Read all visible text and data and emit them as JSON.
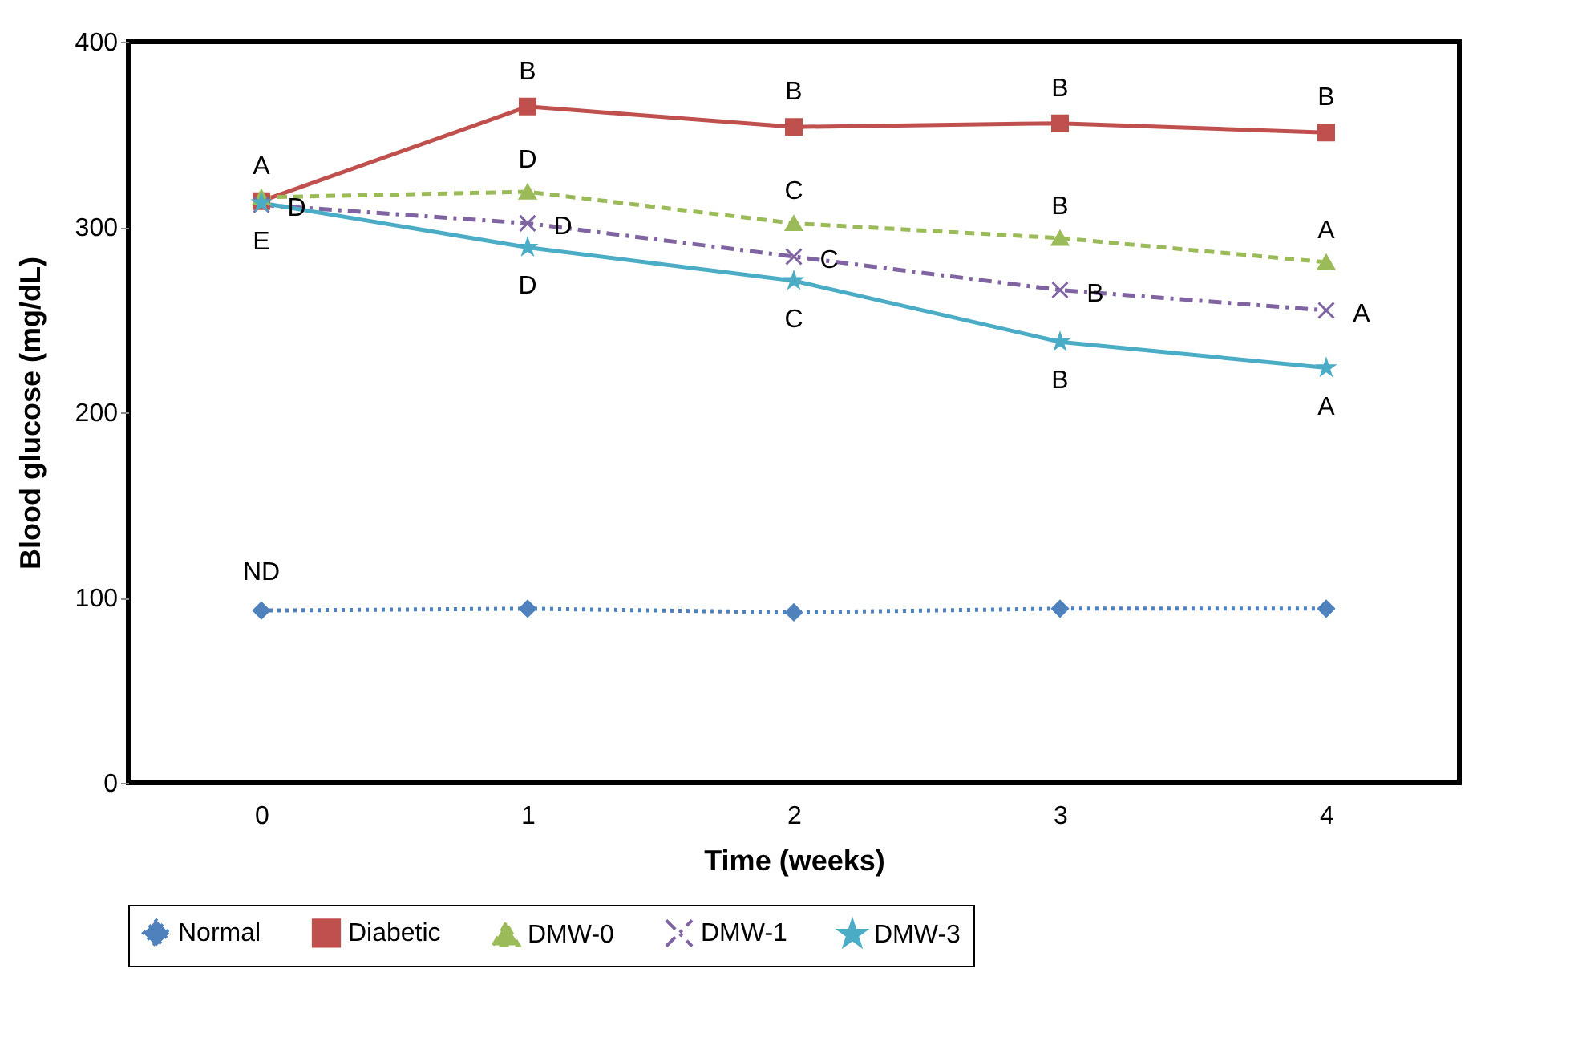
{
  "chart_data": {
    "type": "line",
    "xlabel": "Time (weeks)",
    "ylabel": "Blood glucose (mg/dL)",
    "x": [
      0,
      1,
      2,
      3,
      4
    ],
    "xlim": [
      -0.5,
      4.5
    ],
    "xticks": [
      0,
      1,
      2,
      3,
      4
    ],
    "ylim": [
      0,
      400
    ],
    "yticks": [
      0,
      100,
      200,
      300,
      400
    ],
    "grid": false,
    "legend": "bottom",
    "series": [
      {
        "name": "Normal",
        "color": "#4f81bd",
        "marker": "diamond",
        "line_style": "dotted",
        "values": [
          93,
          94,
          92,
          94,
          94
        ]
      },
      {
        "name": "Diabetic",
        "color": "#c0504d",
        "marker": "square",
        "line_style": "solid",
        "values": [
          314,
          365,
          354,
          356,
          351
        ]
      },
      {
        "name": "DMW-0",
        "color": "#9bbb59",
        "marker": "triangle",
        "line_style": "dashed",
        "values": [
          316,
          319,
          302,
          294,
          281
        ]
      },
      {
        "name": "DMW-1",
        "color": "#8064a2",
        "marker": "cross",
        "line_style": "dashdot",
        "values": [
          312,
          302,
          284,
          266,
          255
        ]
      },
      {
        "name": "DMW-3",
        "color": "#4bacc6",
        "marker": "star",
        "line_style": "solid",
        "values": [
          313,
          289,
          271,
          238,
          224
        ]
      }
    ],
    "annotations": [
      {
        "text": "ND",
        "x": 0,
        "y": 93
      },
      {
        "text": "A",
        "x": 0,
        "y": 314
      },
      {
        "text": "D",
        "x": 0,
        "y": 312
      },
      {
        "text": "E",
        "x": 0,
        "y": 313
      },
      {
        "text": "B",
        "x": 1,
        "y": 365
      },
      {
        "text": "D",
        "x": 1,
        "y": 319
      },
      {
        "text": "D",
        "x": 1,
        "y": 302
      },
      {
        "text": "D",
        "x": 1,
        "y": 289
      },
      {
        "text": "B",
        "x": 2,
        "y": 354
      },
      {
        "text": "C",
        "x": 2,
        "y": 302
      },
      {
        "text": "C",
        "x": 2,
        "y": 284
      },
      {
        "text": "C",
        "x": 2,
        "y": 271
      },
      {
        "text": "B",
        "x": 3,
        "y": 356
      },
      {
        "text": "B",
        "x": 3,
        "y": 294
      },
      {
        "text": "B",
        "x": 3,
        "y": 266
      },
      {
        "text": "B",
        "x": 3,
        "y": 238
      },
      {
        "text": "B",
        "x": 4,
        "y": 351
      },
      {
        "text": "A",
        "x": 4,
        "y": 281
      },
      {
        "text": "A",
        "x": 4,
        "y": 255
      },
      {
        "text": "A",
        "x": 4,
        "y": 224
      }
    ]
  }
}
